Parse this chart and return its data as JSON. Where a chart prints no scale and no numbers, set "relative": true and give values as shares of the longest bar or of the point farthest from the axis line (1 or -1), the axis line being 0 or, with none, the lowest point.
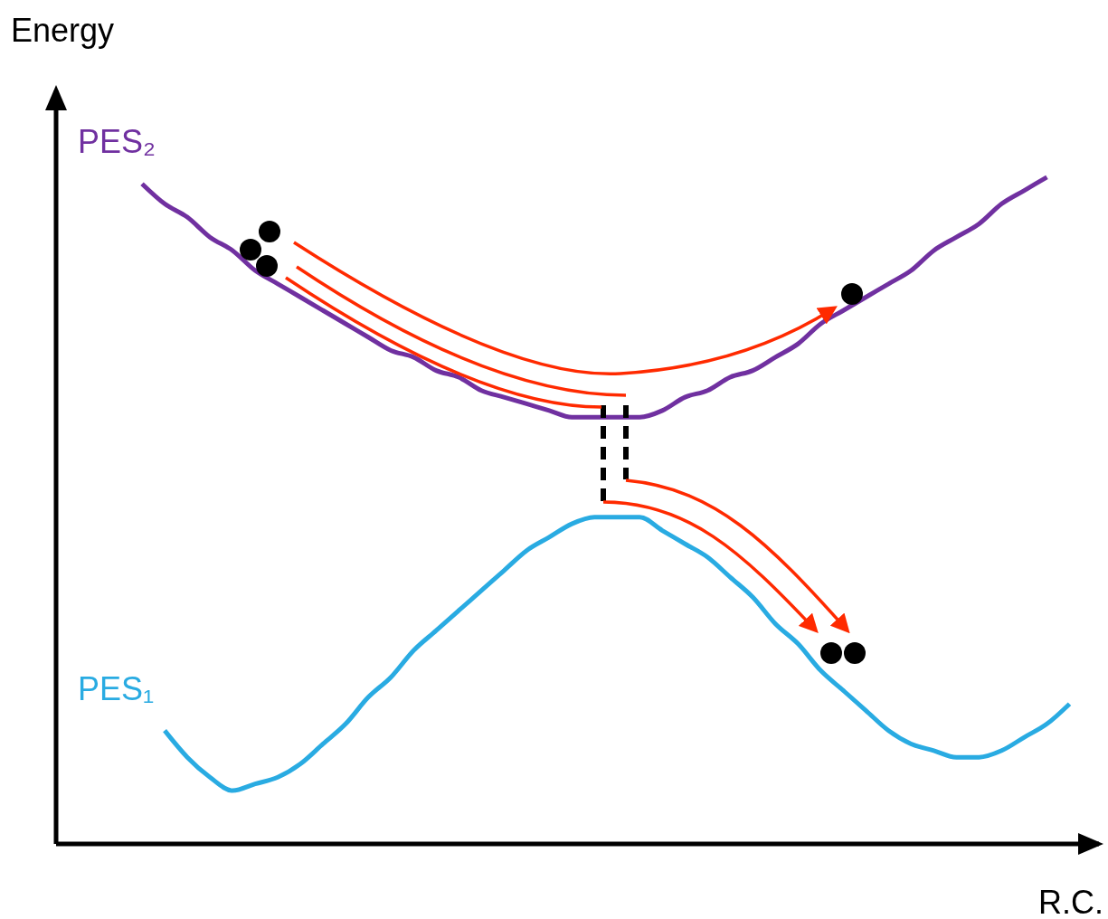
{
  "chart_data": {
    "type": "line",
    "relative": true,
    "xlabel": "R.C.",
    "ylabel": "Energy",
    "grid": false,
    "legend": false,
    "marker": "none",
    "line_style": "solid",
    "categories": [
      null,
      null,
      null,
      null,
      null,
      null,
      null,
      null,
      null,
      null,
      null,
      null,
      null,
      null,
      null,
      null,
      null,
      null,
      null,
      null,
      null,
      null,
      null,
      null,
      null,
      null,
      null,
      null,
      null,
      null,
      null,
      null,
      null,
      null,
      null,
      null,
      null,
      null,
      null,
      null,
      null,
      null
    ],
    "series": [
      {
        "name": "PES₂",
        "color": "#7030a0",
        "values": [
          0.99,
          0.96,
          0.94,
          0.91,
          0.89,
          0.86,
          0.84,
          0.82,
          0.8,
          0.78,
          0.76,
          0.74,
          0.73,
          0.71,
          0.7,
          0.68,
          0.67,
          0.66,
          0.65,
          0.64,
          0.64,
          0.64,
          0.64,
          0.65,
          0.67,
          0.68,
          0.7,
          0.71,
          0.73,
          0.75,
          0.78,
          0.8,
          0.82,
          0.84,
          0.86,
          0.89,
          0.91,
          0.93,
          0.96,
          0.98,
          1,
          null
        ]
      },
      {
        "name": "PES₁",
        "color": "#29abe2",
        "values": [
          null,
          0.17,
          0.13,
          0.1,
          0.08,
          0.09,
          0.1,
          0.12,
          0.15,
          0.18,
          0.22,
          0.25,
          0.29,
          0.32,
          0.35,
          0.38,
          0.41,
          0.44,
          0.46,
          0.48,
          0.49,
          0.49,
          0.49,
          0.47,
          0.45,
          0.43,
          0.4,
          0.37,
          0.33,
          0.3,
          0.26,
          0.23,
          0.2,
          0.17,
          0.15,
          0.14,
          0.13,
          0.13,
          0.14,
          0.16,
          0.18,
          0.21
        ]
      }
    ]
  }
}
